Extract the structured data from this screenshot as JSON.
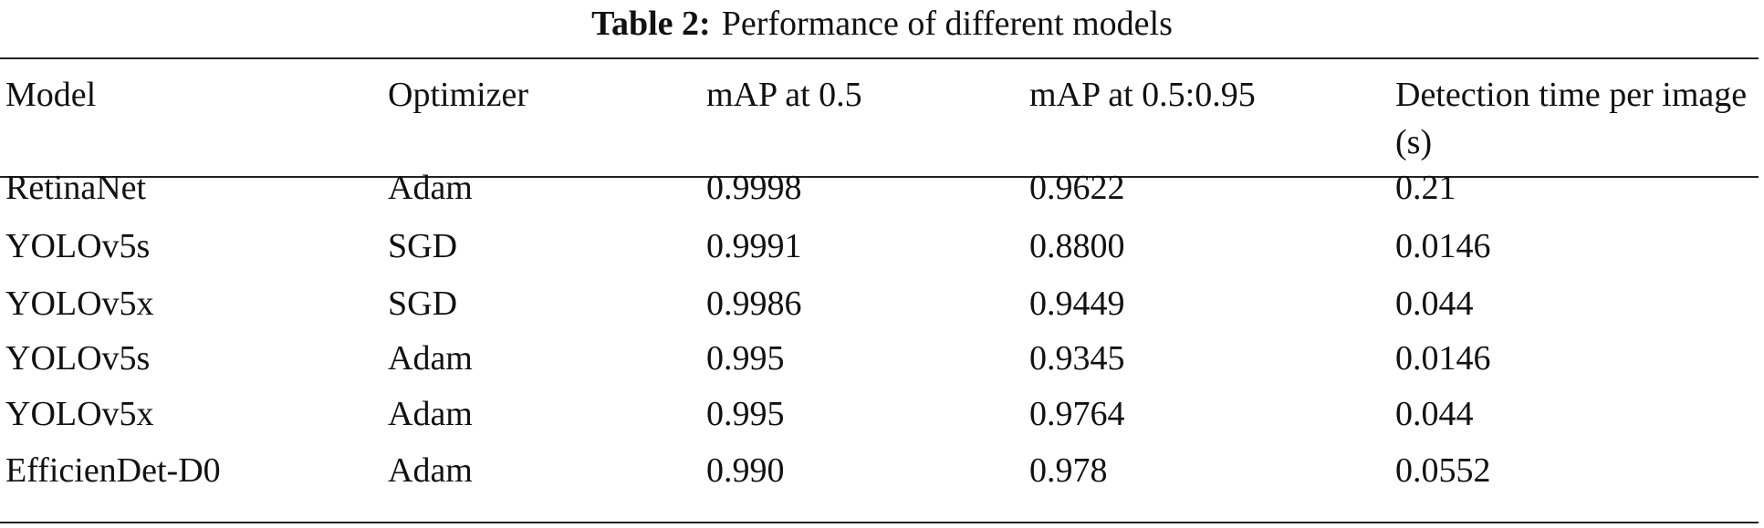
{
  "header": {
    "label": "Table 2:",
    "title": "Performance of different models"
  },
  "table": {
    "columns": [
      "Model",
      "Optimizer",
      "mAP at 0.5",
      "mAP at 0.5:0.95",
      "Detection time per image (s)"
    ],
    "rows": [
      [
        "RetinaNet",
        "Adam",
        "0.9998",
        "0.9622",
        "0.21"
      ],
      [
        "YOLOv5s",
        "SGD",
        "0.9991",
        "0.8800",
        "0.0146"
      ],
      [
        "YOLOv5x",
        "SGD",
        "0.9986",
        "0.9449",
        "0.044"
      ],
      [
        "YOLOv5s",
        "Adam",
        "0.995",
        "0.9345",
        "0.0146"
      ],
      [
        "YOLOv5x",
        "Adam",
        "0.995",
        "0.9764",
        "0.044"
      ],
      [
        "EfficienDet-D0",
        "Adam",
        "0.990",
        "0.978",
        "0.0552"
      ]
    ]
  }
}
